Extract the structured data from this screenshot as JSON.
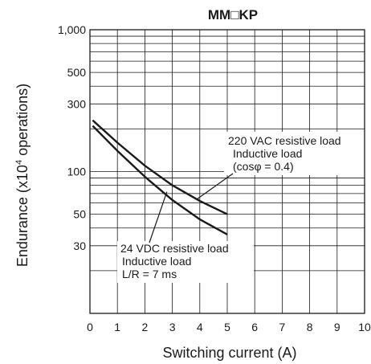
{
  "chart_data": {
    "type": "line",
    "title": "MM□KP",
    "xlabel": "Switching current (A)",
    "ylabel": "Endurance (x10",
    "ylabel_sup": "4",
    "ylabel_tail": " operations)",
    "x_scale": "linear",
    "y_scale": "log",
    "xlim": [
      0,
      10
    ],
    "ylim": [
      10,
      1000
    ],
    "grid": true,
    "x_ticks": [
      0,
      1,
      2,
      3,
      4,
      5,
      6,
      7,
      8,
      9,
      10
    ],
    "x_tick_labels": [
      "0",
      "1",
      "2",
      "3",
      "4",
      "5",
      "6",
      "7",
      "8",
      "9",
      "10"
    ],
    "y_tick_values": [
      30,
      50,
      100,
      300,
      500,
      1000
    ],
    "y_tick_labels": [
      "30",
      "50",
      "100",
      "300",
      "500",
      "1,000"
    ],
    "series": [
      {
        "name": "220 VAC resistive load / Inductive load (cosφ = 0.4)",
        "x": [
          0.1,
          1,
          2,
          3,
          4,
          5
        ],
        "y": [
          230,
          160,
          110,
          80,
          62,
          50
        ]
      },
      {
        "name": "24 VDC resistive load / Inductive load L/R = 7 ms",
        "x": [
          0.1,
          1,
          2,
          3,
          4,
          5
        ],
        "y": [
          210,
          140,
          92,
          63,
          46,
          36
        ]
      }
    ],
    "annotations": [
      {
        "lines": [
          "220 VAC resistive load",
          "Inductive load",
          "(cosφ = 0.4)"
        ],
        "points_to": [
          3.9,
          64
        ]
      },
      {
        "lines": [
          "24 VDC resistive load",
          "Inductive load",
          "L/R = 7 ms"
        ],
        "points_to": [
          2.8,
          72
        ]
      }
    ],
    "colors": {
      "line": "#1a1a1a",
      "grid": "#1a1a1a",
      "background": "#ffffff"
    }
  }
}
